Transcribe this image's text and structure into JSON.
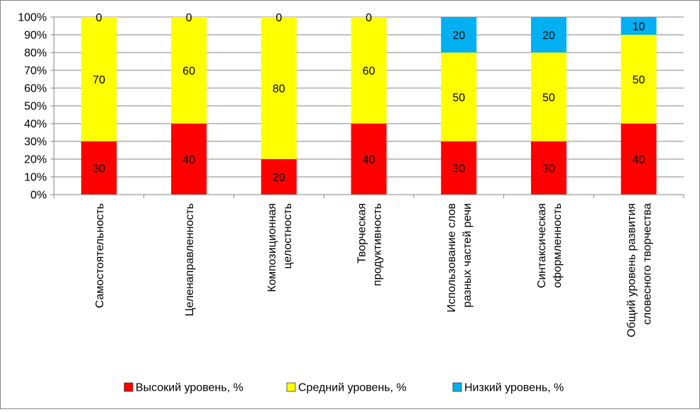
{
  "chart_data": {
    "type": "bar",
    "stacked": true,
    "percent": true,
    "categories": [
      [
        "Самостоятельность"
      ],
      [
        "Целенаправленность"
      ],
      [
        "Композиционная",
        "целостность"
      ],
      [
        "Творческая",
        "продуктивность"
      ],
      [
        "Использование слов",
        "разных частей речи"
      ],
      [
        "Синтаксическая",
        "оформленность"
      ],
      [
        "Общий уровень развития",
        "словесного творчества"
      ]
    ],
    "series": [
      {
        "name": "Высокий уровень, %",
        "color": "#ff0000",
        "values": [
          30,
          40,
          20,
          40,
          30,
          30,
          40
        ]
      },
      {
        "name": "Средний уровень, %",
        "color": "#ffff00",
        "values": [
          70,
          60,
          80,
          60,
          50,
          50,
          50
        ]
      },
      {
        "name": "Низкий уровень, %",
        "color": "#00b0f0",
        "values": [
          0,
          0,
          0,
          0,
          20,
          20,
          10
        ]
      }
    ],
    "yticks": [
      "0%",
      "10%",
      "20%",
      "30%",
      "40%",
      "50%",
      "60%",
      "70%",
      "80%",
      "90%",
      "100%"
    ],
    "ylim": [
      0,
      100
    ],
    "grid": true,
    "legend": "bottom",
    "title": "",
    "xlabel": "",
    "ylabel": ""
  }
}
